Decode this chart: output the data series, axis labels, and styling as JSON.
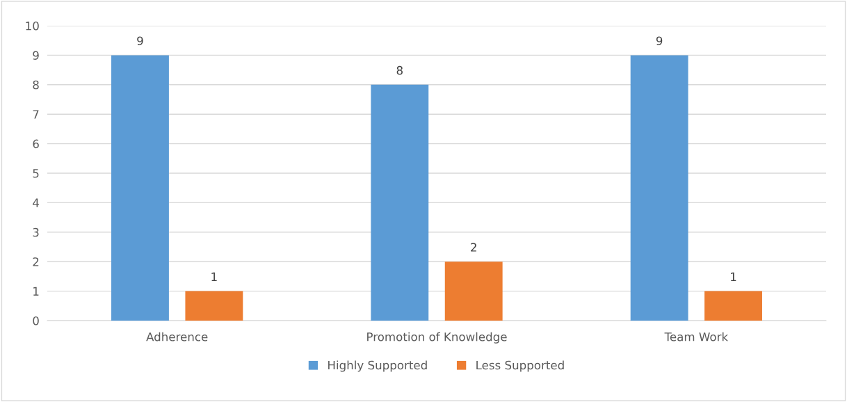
{
  "chart_data": {
    "type": "bar",
    "categories": [
      "Adherence",
      "Promotion of Knowledge",
      "Team Work"
    ],
    "series": [
      {
        "name": "Highly Supported",
        "color": "#5b9bd5",
        "values": [
          9,
          8,
          9
        ]
      },
      {
        "name": "Less Supported",
        "color": "#ed7d31",
        "values": [
          1,
          2,
          1
        ]
      }
    ],
    "ylim": [
      0,
      10
    ],
    "yticks": [
      0,
      1,
      2,
      3,
      4,
      5,
      6,
      7,
      8,
      9,
      10
    ],
    "grid": "y",
    "legend": "bottom",
    "data_labels": true
  }
}
